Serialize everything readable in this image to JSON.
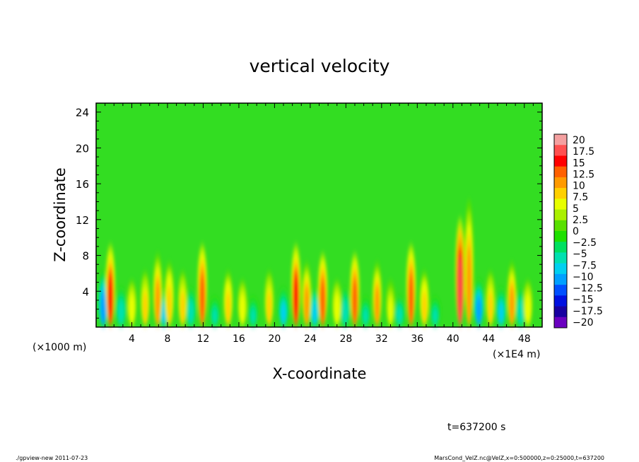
{
  "chart_data": {
    "type": "heatmap",
    "title": "vertical velocity",
    "xlabel": "X-coordinate",
    "ylabel": "Z-coordinate",
    "x_unit_left": "(×1000 m)",
    "x_unit_right": "(×1E4 m)",
    "xlim": [
      0,
      50
    ],
    "ylim": [
      0,
      25
    ],
    "x_ticks": [
      "4",
      "8",
      "12",
      "16",
      "20",
      "24",
      "28",
      "32",
      "36",
      "40",
      "44",
      "48"
    ],
    "x_tick_values": [
      4,
      8,
      12,
      16,
      20,
      24,
      28,
      32,
      36,
      40,
      44,
      48
    ],
    "y_ticks": [
      "4",
      "8",
      "12",
      "16",
      "20",
      "24"
    ],
    "y_tick_values": [
      4,
      8,
      12,
      16,
      20,
      24
    ],
    "colorbar": {
      "labels": [
        "20",
        "17.5",
        "15",
        "12.5",
        "10",
        "7.5",
        "5",
        "2.5",
        "0",
        "−2.5",
        "−5",
        "−7.5",
        "−10",
        "−12.5",
        "−15",
        "−17.5",
        "−20"
      ],
      "colors": [
        "#f4a0a0",
        "#ff5050",
        "#ff0000",
        "#ff6000",
        "#ff9a00",
        "#ffd000",
        "#e8ff00",
        "#aaf000",
        "#58e000",
        "#1ee000",
        "#00e060",
        "#00e0b0",
        "#00d0f0",
        "#00a0ff",
        "#0050ff",
        "#0010e0",
        "#1800a0",
        "#6a00c0"
      ],
      "range": [
        -20,
        20
      ]
    },
    "updrafts": [
      {
        "x": 1.6,
        "peak": 14,
        "height": 9
      },
      {
        "x": 4.0,
        "peak": 6,
        "height": 5
      },
      {
        "x": 5.5,
        "peak": 7,
        "height": 6
      },
      {
        "x": 6.9,
        "peak": 10,
        "height": 8
      },
      {
        "x": 8.2,
        "peak": 8,
        "height": 7
      },
      {
        "x": 9.7,
        "peak": 7,
        "height": 6
      },
      {
        "x": 11.9,
        "peak": 13,
        "height": 9
      },
      {
        "x": 14.8,
        "peak": 8,
        "height": 6
      },
      {
        "x": 16.4,
        "peak": 6,
        "height": 5
      },
      {
        "x": 19.4,
        "peak": 7,
        "height": 6
      },
      {
        "x": 22.4,
        "peak": 14,
        "height": 9
      },
      {
        "x": 23.6,
        "peak": 9,
        "height": 7
      },
      {
        "x": 25.4,
        "peak": 12,
        "height": 8
      },
      {
        "x": 27.0,
        "peak": 6,
        "height": 5
      },
      {
        "x": 29.0,
        "peak": 12,
        "height": 8
      },
      {
        "x": 31.5,
        "peak": 9,
        "height": 7
      },
      {
        "x": 33.0,
        "peak": 5,
        "height": 5
      },
      {
        "x": 35.3,
        "peak": 13,
        "height": 9
      },
      {
        "x": 36.8,
        "peak": 8,
        "height": 6
      },
      {
        "x": 40.8,
        "peak": 17,
        "height": 12
      },
      {
        "x": 41.8,
        "peak": 9,
        "height": 14
      },
      {
        "x": 44.2,
        "peak": 7,
        "height": 6
      },
      {
        "x": 46.6,
        "peak": 10,
        "height": 7
      },
      {
        "x": 48.4,
        "peak": 6,
        "height": 5
      }
    ],
    "downdrafts": [
      {
        "x": 0.8,
        "peak": -9,
        "height": 6
      },
      {
        "x": 2.8,
        "peak": -6,
        "height": 4
      },
      {
        "x": 7.6,
        "peak": -7,
        "height": 4
      },
      {
        "x": 10.6,
        "peak": -6,
        "height": 4
      },
      {
        "x": 13.3,
        "peak": -5,
        "height": 3
      },
      {
        "x": 17.6,
        "peak": -5,
        "height": 3
      },
      {
        "x": 21.0,
        "peak": -7,
        "height": 4
      },
      {
        "x": 24.5,
        "peak": -8,
        "height": 4
      },
      {
        "x": 27.9,
        "peak": -6,
        "height": 4
      },
      {
        "x": 30.2,
        "peak": -5,
        "height": 3
      },
      {
        "x": 34.0,
        "peak": -6,
        "height": 3
      },
      {
        "x": 38.0,
        "peak": -5,
        "height": 3
      },
      {
        "x": 42.9,
        "peak": -9,
        "height": 5
      },
      {
        "x": 45.4,
        "peak": -7,
        "height": 4
      },
      {
        "x": 47.6,
        "peak": -6,
        "height": 4
      }
    ]
  },
  "time_label": "t=637200 s",
  "footer": {
    "left": "./gpview-new   2011-07-23",
    "right": "MarsCond_VelZ.nc@VelZ,x=0:500000,z=0:25000,t=637200"
  }
}
